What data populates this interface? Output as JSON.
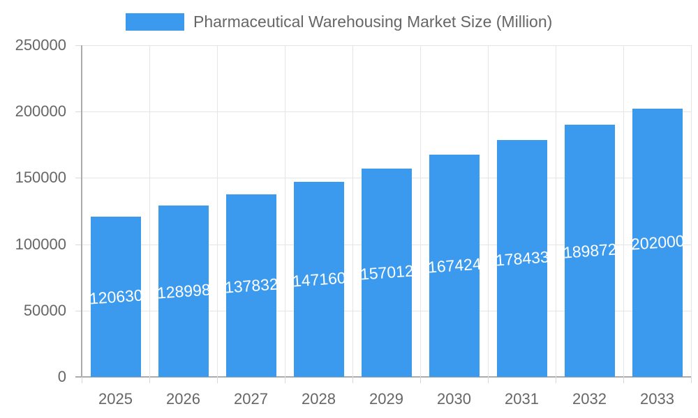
{
  "legend": {
    "label": "Pharmaceutical Warehousing Market Size (Million)"
  },
  "colors": {
    "bar": "#3B9AEE",
    "axis_text": "#666666",
    "grid": "#E5E5E5",
    "axis_line": "#ABABAB",
    "value_label": "#FFFFFF"
  },
  "chart_data": {
    "type": "bar",
    "title": "Pharmaceutical Warehousing Market Size (Million)",
    "categories": [
      "2025",
      "2026",
      "2027",
      "2028",
      "2029",
      "2030",
      "2031",
      "2032",
      "2033"
    ],
    "values": [
      120630,
      128998,
      137832,
      147160,
      157012,
      167424,
      178433,
      189872,
      202000
    ],
    "bar_labels": [
      "120630",
      "128998",
      "137832",
      "147160",
      "157012",
      "167424",
      "178433",
      "189872",
      "202000"
    ],
    "xlabel": "",
    "ylabel": "",
    "ylim": [
      0,
      250000
    ],
    "y_ticks": [
      0,
      50000,
      100000,
      150000,
      200000,
      250000
    ],
    "y_tick_labels": [
      "0",
      "50000",
      "100000",
      "150000",
      "200000",
      "250000"
    ],
    "legend_position": "top",
    "grid": true,
    "bar_labels_position": "center-of-bar",
    "bar_labels_rotation_deg": -4
  }
}
